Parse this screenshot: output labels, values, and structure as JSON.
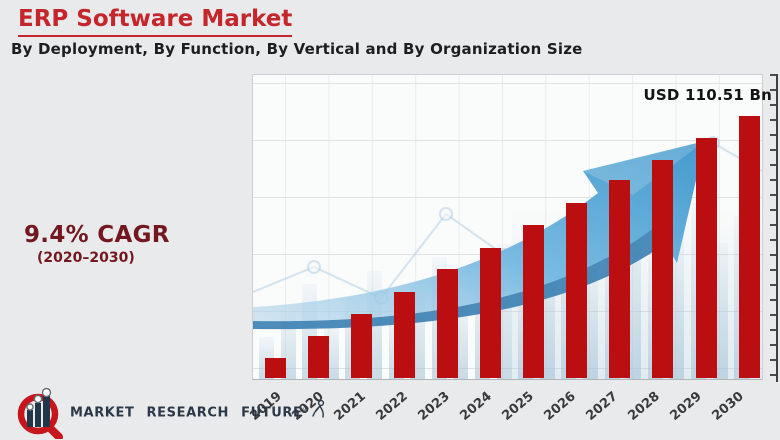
{
  "header": {
    "title": "ERP Software Market",
    "subtitle": "By Deployment, By Function, By Vertical and By Organization Size"
  },
  "cagr": {
    "value": "9.4% CAGR",
    "period": "(2020–2030)"
  },
  "annotation": {
    "label": "USD 110.51 Bn"
  },
  "logo": {
    "name": "MARKET RESEARCH FUTURE",
    "registered": "®"
  },
  "colors": {
    "bar": "#bb0e11",
    "title_red": "#c4262b",
    "cagr_maroon": "#741820",
    "arrow_blue": "#5fb0e0",
    "logo_navy": "#2b3947",
    "logo_red": "#c5161d"
  },
  "chart_data": {
    "type": "bar",
    "title": "ERP Software Market",
    "subtitle": "By Deployment, By Function, By Vertical and By Organization Size",
    "categories": [
      "2019",
      "2020",
      "2021",
      "2022",
      "2023",
      "2024",
      "2025",
      "2026",
      "2027",
      "2028",
      "2029",
      "2030"
    ],
    "values": [
      8.4,
      17.7,
      27.0,
      36.3,
      45.9,
      54.8,
      64.5,
      73.8,
      83.5,
      91.9,
      101.2,
      110.51
    ],
    "unit": "USD Bn",
    "annotation": "USD 110.51 Bn",
    "annotation_year": "2030",
    "cagr_percent": 9.4,
    "cagr_period": "2020–2030",
    "xlabel": "",
    "ylabel": "",
    "ylim": [
      0,
      128
    ],
    "grid": true,
    "legend": false,
    "bar_color": "#bb0e11"
  }
}
